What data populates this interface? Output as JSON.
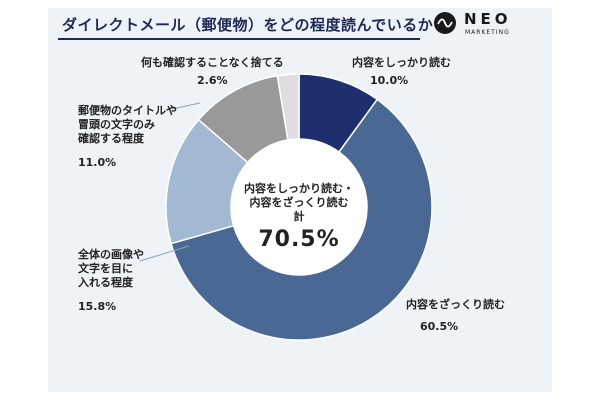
{
  "header": {
    "title": "ダイレクトメール（郵便物）をどの程度読んでいるか",
    "logo_word": "NEO",
    "logo_sub": "MARKETING"
  },
  "chart_data": {
    "type": "pie",
    "title": "ダイレクトメール（郵便物）をどの程度読んでいるか",
    "categories": [
      "内容をしっかり読む",
      "内容をざっくり読む",
      "全体の画像や文字を目に入れる程度",
      "郵便物のタイトルや冒頭の文字のみ確認する程度",
      "何も確認することなく捨てる"
    ],
    "values": [
      10.0,
      60.5,
      15.8,
      11.0,
      2.6
    ],
    "value_labels": [
      "10.0%",
      "60.5%",
      "15.8%",
      "11.0%",
      "2.6%"
    ],
    "colors": [
      "#1e2e6e",
      "#4a6894",
      "#a3b8d3",
      "#999999",
      "#dddddd"
    ],
    "donut": true,
    "center": {
      "line1": "内容をしっかり読む・",
      "line2": "内容をざっくり読む",
      "line3": "計",
      "value": "70.5%"
    },
    "legend": "none"
  },
  "labels": {
    "solid": {
      "lines": [
        "内容をしっかり読む"
      ],
      "pct": "10.0%"
    },
    "rough": {
      "lines": [
        "内容をざっくり読む"
      ],
      "pct": "60.5%"
    },
    "glance": {
      "lines": [
        "全体の画像や",
        "文字を目に",
        "入れる程度"
      ],
      "pct": "15.8%"
    },
    "title_only": {
      "lines": [
        "郵便物のタイトルや",
        "冒頭の文字のみ",
        "確認する程度"
      ],
      "pct": "11.0%"
    },
    "discard": {
      "lines": [
        "何も確認することなく捨てる"
      ],
      "pct": "2.6%"
    }
  }
}
